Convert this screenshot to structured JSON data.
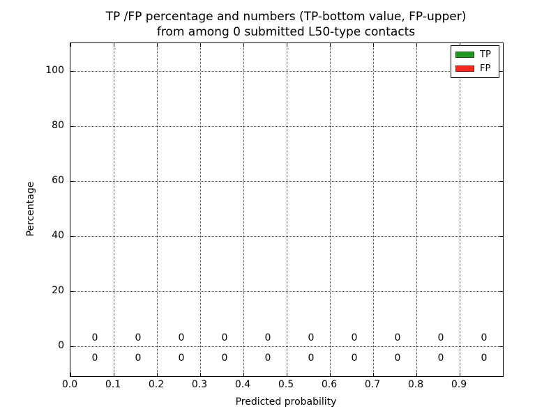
{
  "title": {
    "line1": "TP /FP percentage and numbers (TP-bottom value, FP-upper)",
    "line2": "from among 0 submitted L50-type contacts"
  },
  "chart_data": {
    "type": "bar",
    "title": "TP /FP percentage and numbers (TP-bottom value, FP-upper)\nfrom among 0 submitted L50-type contacts",
    "xlabel": "Predicted probability",
    "ylabel": "Percentage",
    "xlim": [
      0.0,
      1.0
    ],
    "ylim": [
      -11,
      110
    ],
    "grid": {
      "visible": true,
      "linestyle": "dotted"
    },
    "xtick_values": [
      0.0,
      0.1,
      0.2,
      0.3,
      0.4,
      0.5,
      0.6,
      0.7,
      0.8,
      0.9
    ],
    "xtick_labels": [
      "0.0",
      "0.1",
      "0.2",
      "0.3",
      "0.4",
      "0.5",
      "0.6",
      "0.7",
      "0.8",
      "0.9"
    ],
    "ytick_values": [
      0,
      20,
      40,
      60,
      80,
      100
    ],
    "ytick_labels": [
      "0",
      "20",
      "40",
      "60",
      "80",
      "100"
    ],
    "bin_centers": [
      0.05,
      0.15,
      0.25,
      0.35,
      0.45,
      0.55,
      0.65,
      0.75,
      0.85,
      0.95
    ],
    "series": [
      {
        "name": "TP",
        "color": "#229622",
        "values": [
          0,
          0,
          0,
          0,
          0,
          0,
          0,
          0,
          0,
          0
        ]
      },
      {
        "name": "FP",
        "color": "#f8281e",
        "values": [
          0,
          0,
          0,
          0,
          0,
          0,
          0,
          0,
          0,
          0
        ]
      }
    ],
    "annotations": {
      "fp_upper_row": {
        "y": 3.0,
        "labels": [
          "0",
          "0",
          "0",
          "0",
          "0",
          "0",
          "0",
          "0",
          "0",
          "0"
        ]
      },
      "tp_lower_row": {
        "y": -4.3,
        "labels": [
          "0",
          "0",
          "0",
          "0",
          "0",
          "0",
          "0",
          "0",
          "0",
          "0"
        ]
      }
    },
    "legend": {
      "position": "upper right",
      "entries": [
        {
          "label": "TP",
          "color": "#229622"
        },
        {
          "label": "FP",
          "color": "#f8281e"
        }
      ]
    }
  }
}
